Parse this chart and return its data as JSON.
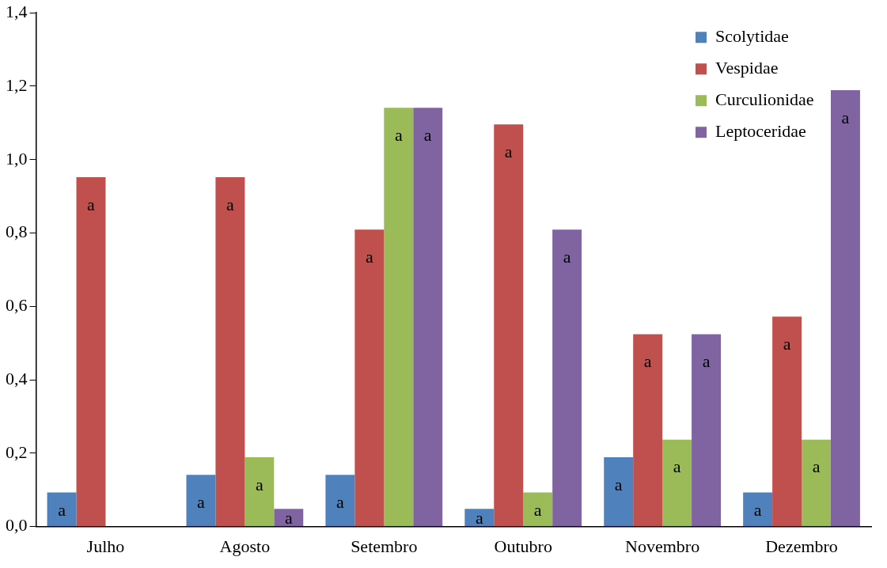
{
  "chart_data": {
    "type": "bar",
    "categories": [
      "Julho",
      "Agosto",
      "Setembro",
      "Outubro",
      "Novembro",
      "Dezembro"
    ],
    "series": [
      {
        "name": "Scolytidae",
        "color": "#4f81bd",
        "values": [
          0.093,
          0.141,
          0.141,
          0.048,
          0.189,
          0.093
        ],
        "value_labels": [
          "a",
          "a",
          "a",
          "a",
          "a",
          "a"
        ]
      },
      {
        "name": "Vespidae",
        "color": "#c0504d",
        "values": [
          0.952,
          0.952,
          0.809,
          1.096,
          0.524,
          0.572
        ],
        "value_labels": [
          "a",
          "a",
          "a",
          "a",
          "a",
          "a"
        ]
      },
      {
        "name": "Curculionidae",
        "color": "#9bbb59",
        "values": [
          null,
          0.189,
          1.141,
          0.093,
          0.237,
          0.237
        ],
        "value_labels": [
          null,
          "a",
          "a",
          "a",
          "a",
          "a"
        ]
      },
      {
        "name": "Leptoceridae",
        "color": "#8064a2",
        "values": [
          null,
          0.048,
          1.141,
          0.809,
          0.524,
          1.189
        ],
        "value_labels": [
          null,
          "a",
          "a",
          "a",
          "a",
          "a"
        ]
      }
    ],
    "ylim": [
      0,
      1.4
    ],
    "yticks": [
      {
        "value": 0,
        "label": "0,0"
      },
      {
        "value": 0.2,
        "label": "0,2"
      },
      {
        "value": 0.4,
        "label": "0,4"
      },
      {
        "value": 0.6,
        "label": "0,6"
      },
      {
        "value": 0.8,
        "label": "0,8"
      },
      {
        "value": 1.0,
        "label": "1,0"
      },
      {
        "value": 1.2,
        "label": "1,2"
      },
      {
        "value": 1.4,
        "label": "1,4"
      }
    ],
    "grid": false,
    "legend": "top right"
  }
}
